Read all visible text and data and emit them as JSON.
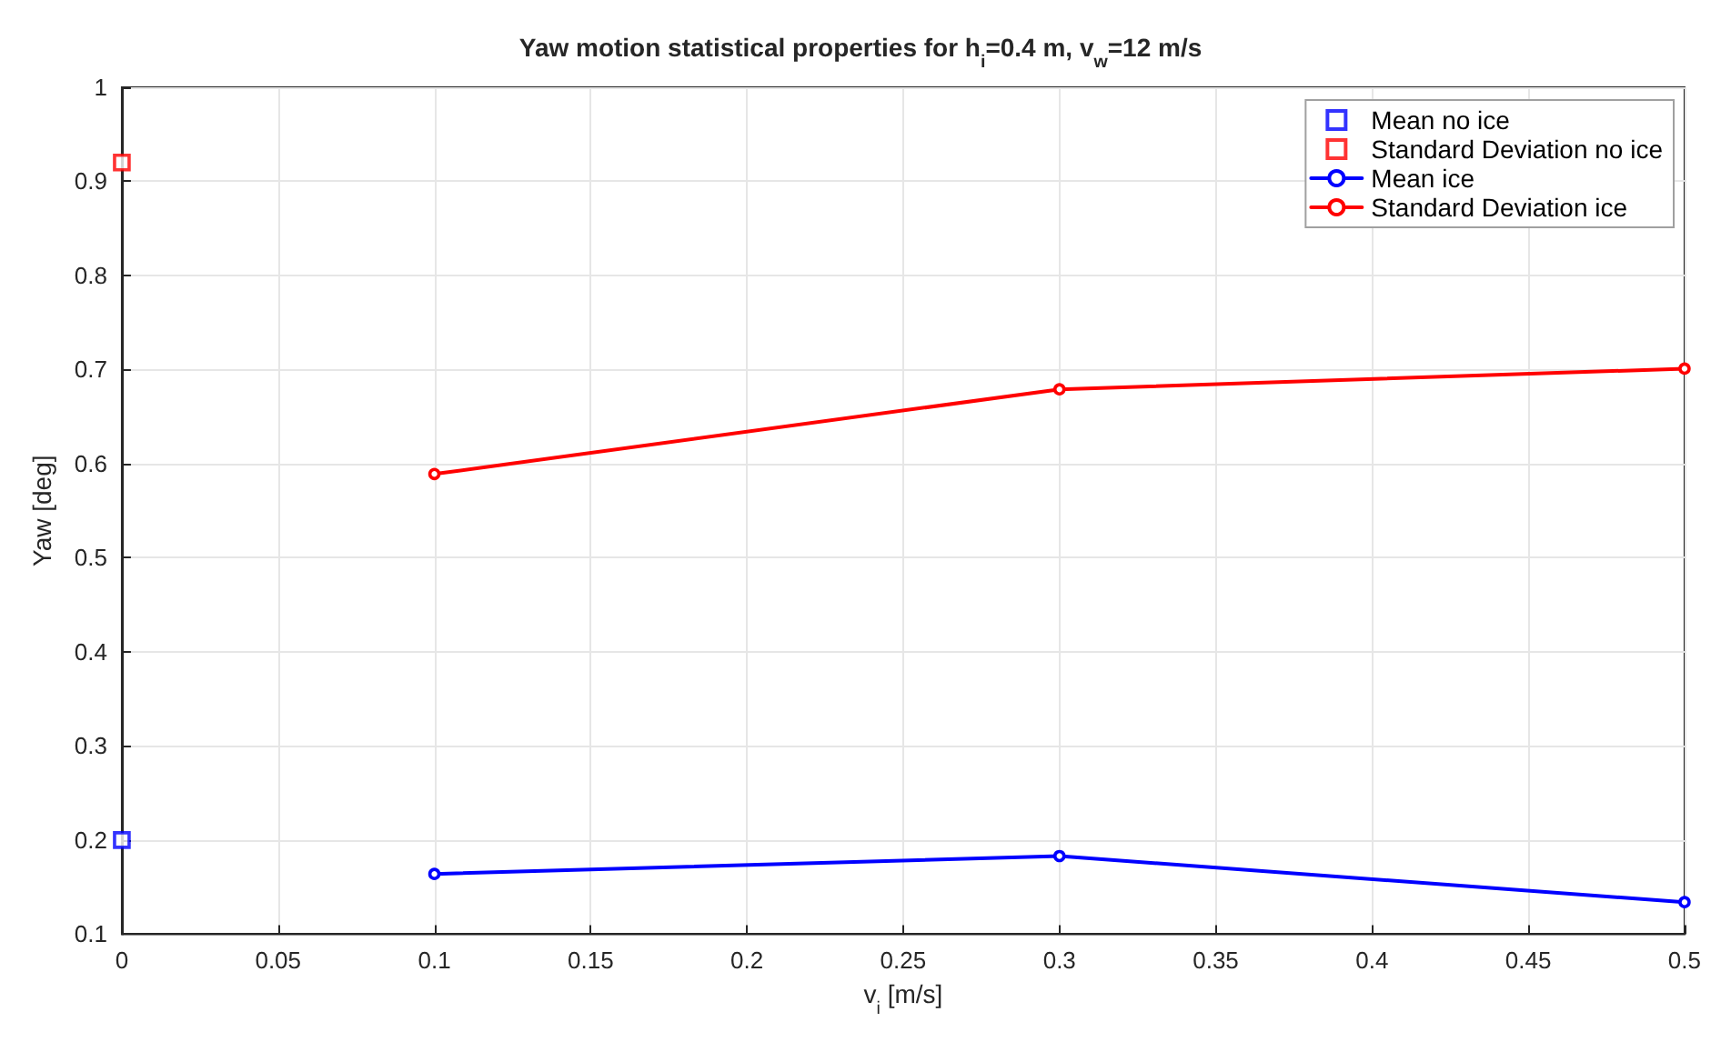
{
  "chart_data": {
    "type": "line",
    "title": "Yaw motion statistical properties for h$_{i}$=0.4 m, v$_{w}$=12 m/s",
    "xlabel": "v$_{i}$ [m/s]",
    "ylabel": "Yaw [deg]",
    "xlim": [
      0,
      0.5
    ],
    "xticks": [
      0,
      0.05,
      0.1,
      0.15,
      0.2,
      0.25,
      0.3,
      0.35,
      0.4,
      0.45,
      0.5
    ],
    "ylim": [
      0.1,
      1
    ],
    "yticks": [
      0.1,
      0.2,
      0.3,
      0.4,
      0.5,
      0.6,
      0.7,
      0.8,
      0.9,
      1
    ],
    "grid": true,
    "legend": "top right",
    "series": [
      {
        "name": "Mean no ice",
        "type": "scatter",
        "marker": "square",
        "color": "#0000ff",
        "x": [
          0
        ],
        "values": [
          0.2
        ]
      },
      {
        "name": "Standard Deviation no ice",
        "type": "scatter",
        "marker": "square",
        "color": "#ff0000",
        "x": [
          0
        ],
        "values": [
          0.92
        ]
      },
      {
        "name": "Mean ice",
        "marker": "circle",
        "color": "#0000ff",
        "x": [
          0.1,
          0.3,
          0.5
        ],
        "values": [
          0.164,
          0.183,
          0.134
        ]
      },
      {
        "name": "Standard Deviation ice",
        "marker": "circle",
        "color": "#ff0000",
        "x": [
          0.1,
          0.3,
          0.5
        ],
        "values": [
          0.589,
          0.679,
          0.701
        ]
      }
    ]
  }
}
